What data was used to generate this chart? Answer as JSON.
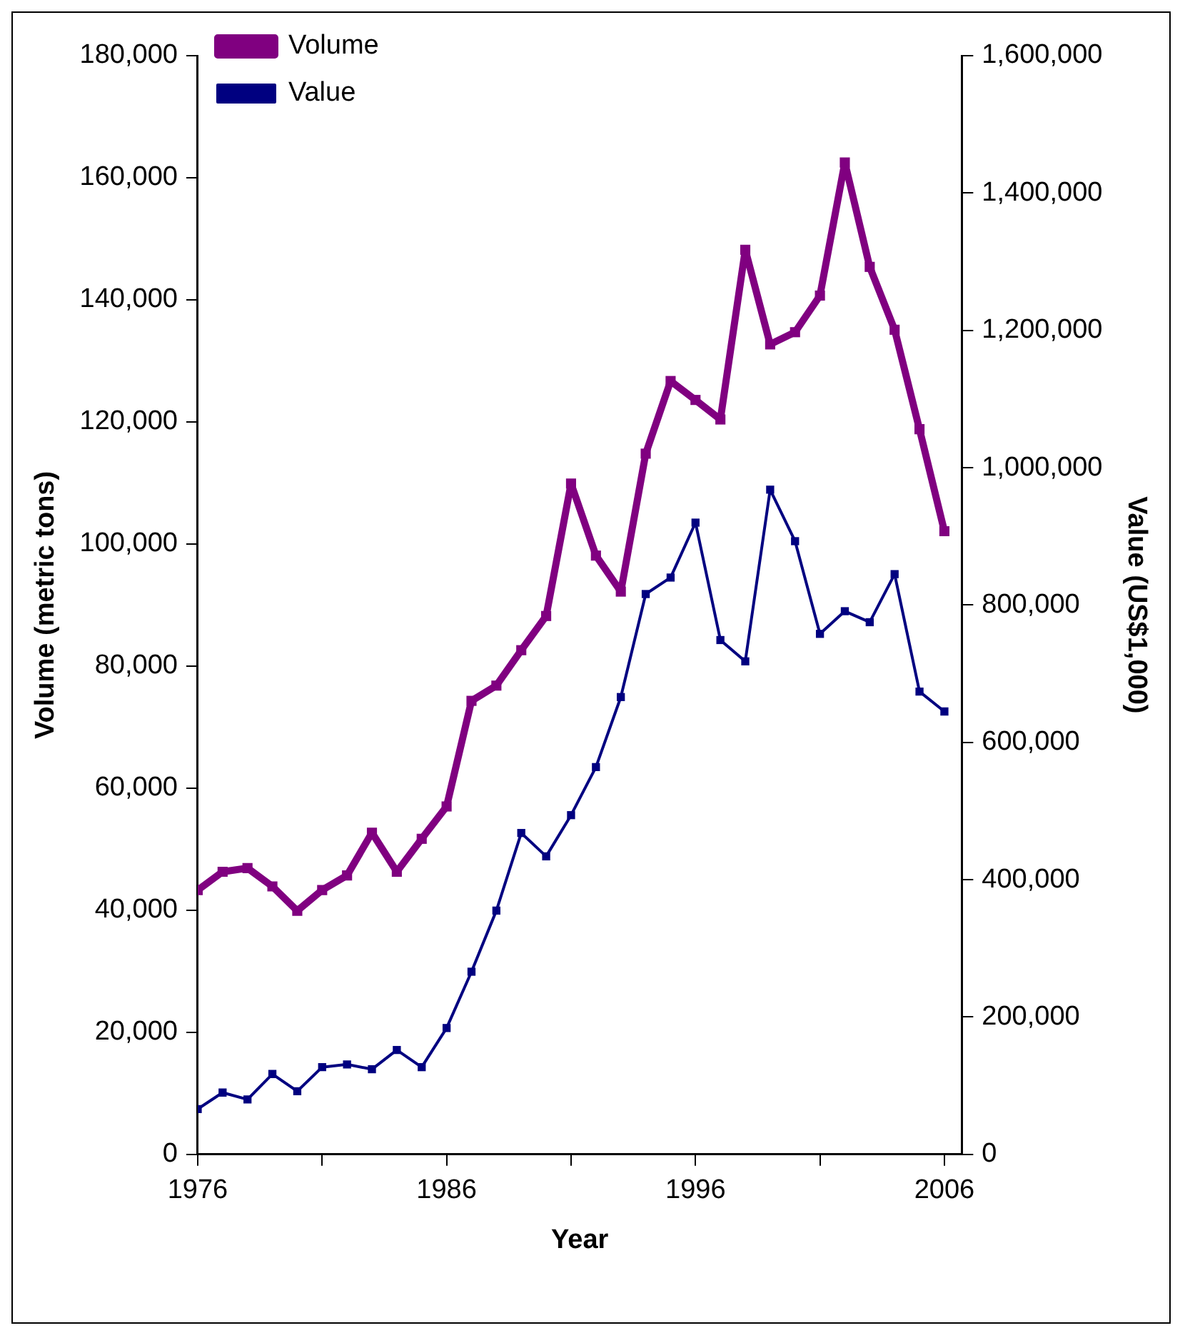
{
  "chart_data": {
    "type": "line",
    "xlabel": "Year",
    "ylabel": "Volume (metric tons)",
    "y2label": "Value (US$1,000)",
    "x": [
      1976,
      1977,
      1978,
      1979,
      1980,
      1981,
      1982,
      1983,
      1984,
      1985,
      1986,
      1987,
      1988,
      1989,
      1990,
      1991,
      1992,
      1993,
      1994,
      1995,
      1996,
      1997,
      1998,
      1999,
      2000,
      2001,
      2002,
      2003,
      2004,
      2005,
      2006
    ],
    "series": [
      {
        "name": "Volume",
        "color": "#800080",
        "values": [
          43300,
          46300,
          46900,
          43900,
          39900,
          43300,
          45700,
          52700,
          46300,
          51700,
          57000,
          74300,
          76800,
          82600,
          88200,
          109900,
          98100,
          92200,
          114800,
          126700,
          123600,
          120400,
          148200,
          132700,
          134700,
          140700,
          162500,
          145400,
          135100,
          118800,
          102100
        ]
      },
      {
        "name": "Value",
        "color": "#000080",
        "axis": "y2",
        "values": [
          66000,
          90000,
          80000,
          117000,
          92000,
          127000,
          131000,
          124000,
          152000,
          127000,
          184000,
          266000,
          355000,
          468000,
          434000,
          494000,
          564000,
          666000,
          816000,
          840000,
          920000,
          749000,
          718000,
          968000,
          893000,
          758000,
          791000,
          775000,
          845000,
          674000,
          645000
        ]
      }
    ],
    "xlim": [
      1976,
      2006.7
    ],
    "xticks": [
      1976,
      {
        "value": 1981,
        "label": null
      },
      1986,
      {
        "value": 1991,
        "label": null
      },
      1996,
      {
        "value": 2001,
        "label": null
      },
      2006
    ],
    "ylim": [
      0,
      180000
    ],
    "yticks": [
      0,
      {
        "value": 20000,
        "label": "20,000"
      },
      {
        "value": 40000,
        "label": "40,000"
      },
      {
        "value": 60000,
        "label": "60,000"
      },
      {
        "value": 80000,
        "label": "80,000"
      },
      {
        "value": 100000,
        "label": "100,000"
      },
      {
        "value": 120000,
        "label": "120,000"
      },
      {
        "value": 140000,
        "label": "140,000"
      },
      {
        "value": 160000,
        "label": "160,000"
      },
      {
        "value": 180000,
        "label": "180,000"
      }
    ],
    "y2lim": [
      0,
      1600000
    ],
    "y2ticks": [
      0,
      {
        "value": 200000,
        "label": "200,000"
      },
      {
        "value": 400000,
        "label": "400,000"
      },
      {
        "value": 600000,
        "label": "600,000"
      },
      {
        "value": 800000,
        "label": "800,000"
      },
      {
        "value": 1000000,
        "label": "1,000,000"
      },
      {
        "value": 1200000,
        "label": "1,200,000"
      },
      {
        "value": 1400000,
        "label": "1,400,000"
      },
      {
        "value": 1600000,
        "label": "1,600,000"
      }
    ],
    "grid": false,
    "legend": "top left",
    "marker": "square",
    "line_style": "solid"
  }
}
